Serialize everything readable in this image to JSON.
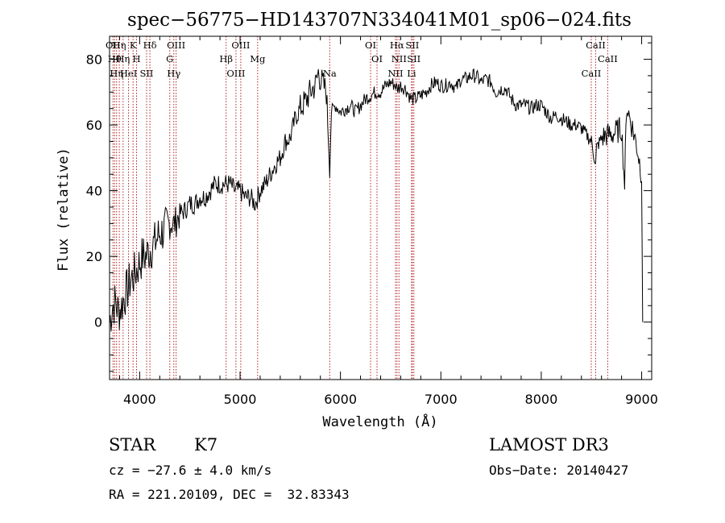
{
  "chart_data": {
    "type": "line",
    "title": "spec−56775−HD143707N334041M01_sp06−024.fits",
    "xlabel": "Wavelength (Å)",
    "ylabel": "Flux (relative)",
    "xlim": [
      3700,
      9100
    ],
    "ylim": [
      -17.5,
      87
    ],
    "x_ticks": [
      4000,
      5000,
      6000,
      7000,
      8000,
      9000
    ],
    "y_ticks": [
      0,
      20,
      40,
      60,
      80
    ],
    "line_color": "#000000",
    "marker_color": "#b22222",
    "series": [
      {
        "x": [
          3700,
          3730,
          3760,
          3790,
          3820,
          3850,
          3880,
          3910,
          3940,
          3970,
          4000,
          4030,
          4060,
          4100,
          4150,
          4200,
          4250,
          4300,
          4350,
          4400,
          4450,
          4500,
          4550,
          4600,
          4650,
          4700,
          4750,
          4800,
          4850,
          4900,
          4950,
          5000,
          5050,
          5100,
          5150,
          5200,
          5250,
          5300,
          5350,
          5400,
          5450,
          5500,
          5550,
          5600,
          5650,
          5700,
          5750,
          5780,
          5800,
          5830,
          5860,
          5893,
          5910,
          5950,
          6000,
          6050,
          6100,
          6150,
          6200,
          6250,
          6300,
          6350,
          6400,
          6450,
          6500,
          6550,
          6563,
          6600,
          6650,
          6700,
          6750,
          6800,
          6850,
          6900,
          6950,
          7000,
          7050,
          7100,
          7150,
          7200,
          7250,
          7300,
          7350,
          7400,
          7450,
          7500,
          7550,
          7600,
          7650,
          7700,
          7750,
          7800,
          7850,
          7900,
          7950,
          8000,
          8050,
          8100,
          8150,
          8200,
          8250,
          8300,
          8350,
          8400,
          8450,
          8500,
          8542,
          8550,
          8600,
          8650,
          8700,
          8750,
          8800,
          8830,
          8850,
          8900,
          8950,
          9000,
          9010
        ],
        "y": [
          0,
          5,
          6,
          3,
          5,
          8,
          10,
          13,
          14,
          16,
          18,
          20,
          20,
          22,
          24,
          27,
          28,
          30,
          30,
          33,
          34,
          36,
          36,
          38,
          38,
          40,
          42,
          42,
          42,
          42,
          40,
          40,
          38,
          38,
          36,
          40,
          42,
          45,
          48,
          50,
          55,
          56,
          62,
          65,
          67,
          70,
          72,
          76,
          74,
          72,
          70,
          48,
          64,
          66,
          64,
          65,
          66,
          64,
          66,
          68,
          69,
          70,
          70,
          72,
          73,
          72,
          71,
          72,
          71,
          68,
          68,
          69,
          70,
          72,
          73,
          72,
          72,
          73,
          71,
          74,
          74,
          75,
          75,
          73,
          74,
          73,
          70,
          71,
          71,
          68,
          66,
          66,
          66,
          65,
          66,
          66,
          64,
          62,
          63,
          62,
          61,
          60,
          60,
          59,
          57,
          55,
          48,
          53,
          56,
          57,
          57,
          58,
          59,
          42,
          66,
          60,
          54,
          45,
          0
        ]
      }
    ],
    "lines_top": [
      {
        "x": 3734,
        "label": "OII"
      },
      {
        "x": 3750,
        "label": "Hθ"
      },
      {
        "x": 3770,
        "label": "Hη"
      },
      {
        "x": 3797,
        "label": "Hη"
      },
      {
        "x": 3835,
        "label": "Hη"
      },
      {
        "x": 3889,
        "label": "HeI"
      },
      {
        "x": 3934,
        "label": "K"
      },
      {
        "x": 3969,
        "label": "H"
      },
      {
        "x": 4069,
        "label": "SII"
      },
      {
        "x": 4102,
        "label": "Hδ"
      },
      {
        "x": 4300,
        "label": "G"
      },
      {
        "x": 4340,
        "label": "Hγ"
      },
      {
        "x": 4363,
        "label": "OIII"
      },
      {
        "x": 4861,
        "label": "Hβ"
      },
      {
        "x": 4959,
        "label": "OIII"
      },
      {
        "x": 5007,
        "label": "OIII"
      },
      {
        "x": 5175,
        "label": "Mg"
      },
      {
        "x": 5893,
        "label": "Na"
      },
      {
        "x": 6300,
        "label": "OI"
      },
      {
        "x": 6364,
        "label": "OI"
      },
      {
        "x": 6548,
        "label": "NII"
      },
      {
        "x": 6563,
        "label": "Hα"
      },
      {
        "x": 6583,
        "label": "NII"
      },
      {
        "x": 6708,
        "label": "Li"
      },
      {
        "x": 6716,
        "label": "SII"
      },
      {
        "x": 6731,
        "label": "SII"
      },
      {
        "x": 8498,
        "label": "CaII"
      },
      {
        "x": 8542,
        "label": "CaII"
      },
      {
        "x": 8662,
        "label": "CaII"
      }
    ]
  },
  "info": {
    "class_label": "STAR",
    "subclass": "K7",
    "survey": "LAMOST DR3",
    "cz": "cz = −27.6 ± 4.0 km/s",
    "obs_date": "Obs−Date: 20140427",
    "radec": "RA = 221.20109, DEC =  32.83343"
  }
}
